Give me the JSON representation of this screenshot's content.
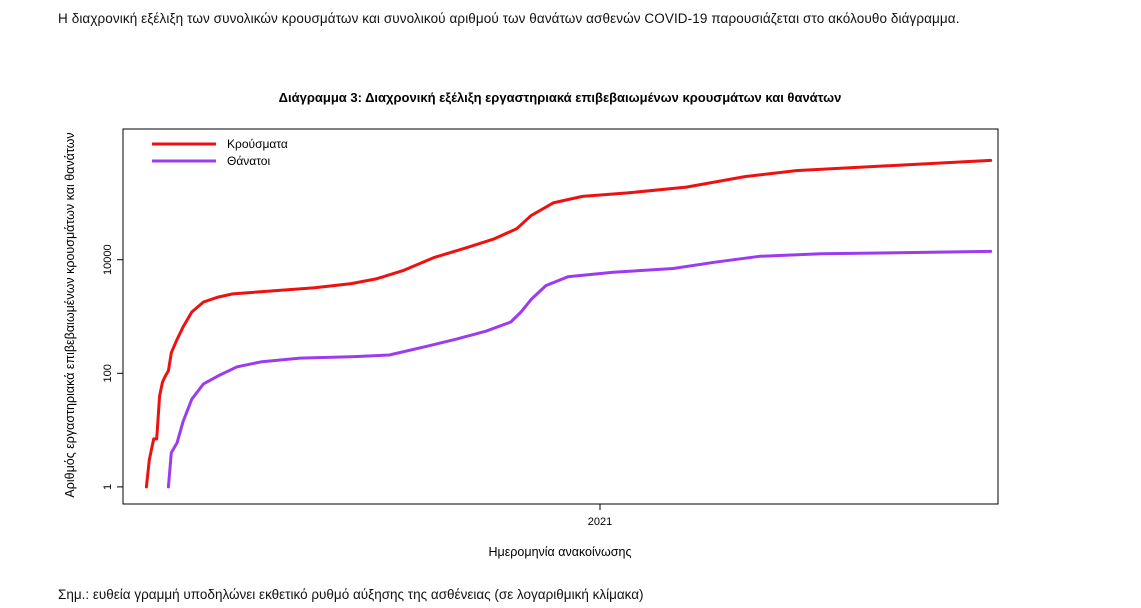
{
  "intro_text": "Η διαχρονική εξέλιξη των συνολικών κρουσμάτων και συνολικού αριθμού των θανάτων ασθενών COVID-19 παρουσιάζεται στο ακόλουθο διάγραμμα.",
  "note": "Σημ.: ευθεία γραμμή υποδηλώνει εκθετικό ρυθμό αύξησης της ασθένειας (σε λογαριθμική κλίμακα)",
  "chart_data": {
    "type": "line",
    "title": "Διάγραμμα 3: Διαχρονική εξέλιξη εργαστηριακά επιβεβαιωμένων κρουσμάτων και θανάτων",
    "xlabel": "Ημερομηνία ανακοίνωσης",
    "ylabel": "Αριθμός εργαστηριακά επιβεβαιωμένων κρουσμάτων και θανάτων",
    "y_scale": "log",
    "ylim": [
      0.5,
      2000000
    ],
    "xlim": [
      "2020-02-10",
      "2021-09-30"
    ],
    "y_ticks": [
      {
        "value": 1,
        "label": "1"
      },
      {
        "value": 100,
        "label": "100"
      },
      {
        "value": 10000,
        "label": "10000"
      }
    ],
    "x_ticks": [
      {
        "value": "2021-01-01",
        "label": "2021"
      }
    ],
    "grid": false,
    "legend_position": "top-left",
    "series": [
      {
        "name": "Κρούσματα",
        "color": "#ee1111",
        "points": [
          [
            "2020-02-26",
            1
          ],
          [
            "2020-02-28",
            3
          ],
          [
            "2020-03-02",
            7
          ],
          [
            "2020-03-04",
            7
          ],
          [
            "2020-03-06",
            40
          ],
          [
            "2020-03-08",
            70
          ],
          [
            "2020-03-10",
            90
          ],
          [
            "2020-03-12",
            110
          ],
          [
            "2020-03-14",
            230
          ],
          [
            "2020-03-17",
            350
          ],
          [
            "2020-03-22",
            650
          ],
          [
            "2020-03-28",
            1200
          ],
          [
            "2020-04-05",
            1800
          ],
          [
            "2020-04-15",
            2200
          ],
          [
            "2020-04-25",
            2500
          ],
          [
            "2020-05-20",
            2800
          ],
          [
            "2020-06-20",
            3200
          ],
          [
            "2020-07-15",
            3800
          ],
          [
            "2020-08-01",
            4600
          ],
          [
            "2020-08-20",
            6500
          ],
          [
            "2020-09-10",
            11000
          ],
          [
            "2020-10-01",
            16000
          ],
          [
            "2020-10-20",
            23000
          ],
          [
            "2020-11-05",
            35000
          ],
          [
            "2020-11-15",
            60000
          ],
          [
            "2020-11-30",
            100000
          ],
          [
            "2020-12-20",
            130000
          ],
          [
            "2021-01-20",
            150000
          ],
          [
            "2021-03-01",
            190000
          ],
          [
            "2021-04-10",
            290000
          ],
          [
            "2021-05-15",
            370000
          ],
          [
            "2021-09-25",
            560000
          ]
        ]
      },
      {
        "name": "Θάνατοι",
        "color": "#9c3cf0",
        "points": [
          [
            "2020-03-12",
            1
          ],
          [
            "2020-03-14",
            4
          ],
          [
            "2020-03-18",
            6
          ],
          [
            "2020-03-22",
            14
          ],
          [
            "2020-03-28",
            35
          ],
          [
            "2020-04-05",
            65
          ],
          [
            "2020-04-15",
            90
          ],
          [
            "2020-04-28",
            130
          ],
          [
            "2020-05-15",
            160
          ],
          [
            "2020-06-10",
            185
          ],
          [
            "2020-07-15",
            195
          ],
          [
            "2020-08-10",
            210
          ],
          [
            "2020-09-05",
            300
          ],
          [
            "2020-09-25",
            400
          ],
          [
            "2020-10-15",
            550
          ],
          [
            "2020-11-01",
            800
          ],
          [
            "2020-11-08",
            1200
          ],
          [
            "2020-11-15",
            2000
          ],
          [
            "2020-11-25",
            3500
          ],
          [
            "2020-12-10",
            5000
          ],
          [
            "2021-01-10",
            6000
          ],
          [
            "2021-02-20",
            7000
          ],
          [
            "2021-03-20",
            9000
          ],
          [
            "2021-04-20",
            11500
          ],
          [
            "2021-06-01",
            12700
          ],
          [
            "2021-09-25",
            14000
          ]
        ]
      }
    ]
  }
}
